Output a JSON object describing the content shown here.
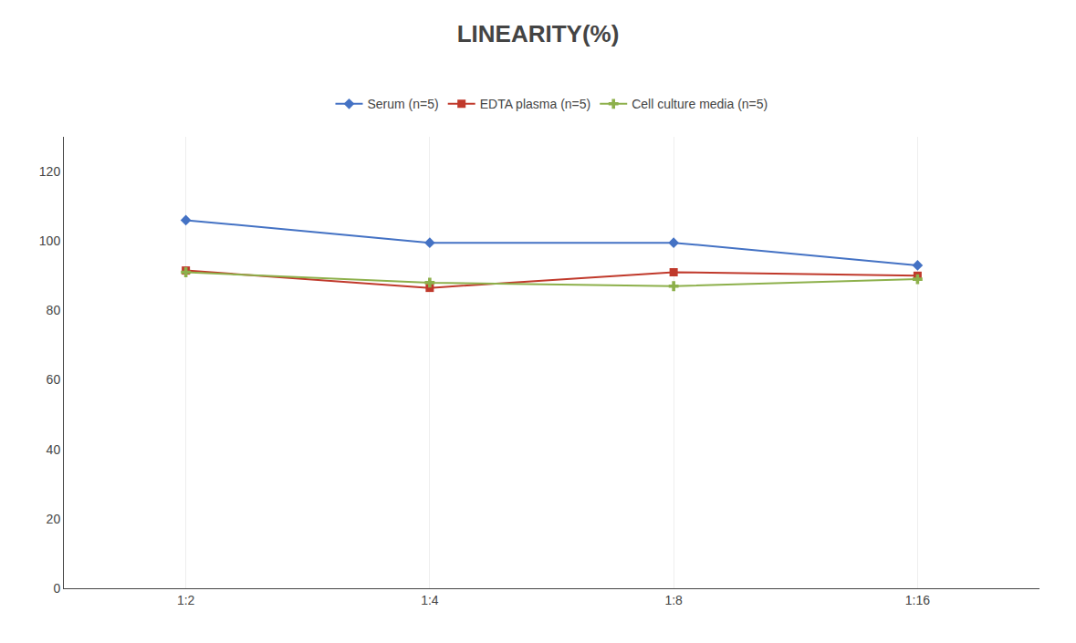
{
  "chart_data": {
    "type": "line",
    "title": "LINEARITY(%)",
    "categories": [
      "1:2",
      "1:4",
      "1:8",
      "1:16"
    ],
    "series": [
      {
        "name": "Serum (n=5)",
        "color": "#4472C4",
        "marker": "diamond",
        "values": [
          106,
          99.5,
          99.5,
          93
        ]
      },
      {
        "name": "EDTA plasma (n=5)",
        "color": "#C0392B",
        "marker": "square",
        "values": [
          91.5,
          86.5,
          91,
          90
        ]
      },
      {
        "name": "Cell culture media (n=5)",
        "color": "#8DB04B",
        "marker": "cross",
        "values": [
          91,
          88,
          87,
          89
        ]
      }
    ],
    "ylim": [
      0,
      130
    ],
    "yticks": [
      0,
      20,
      40,
      60,
      80,
      100,
      120
    ],
    "grid": true,
    "legend": "top"
  }
}
